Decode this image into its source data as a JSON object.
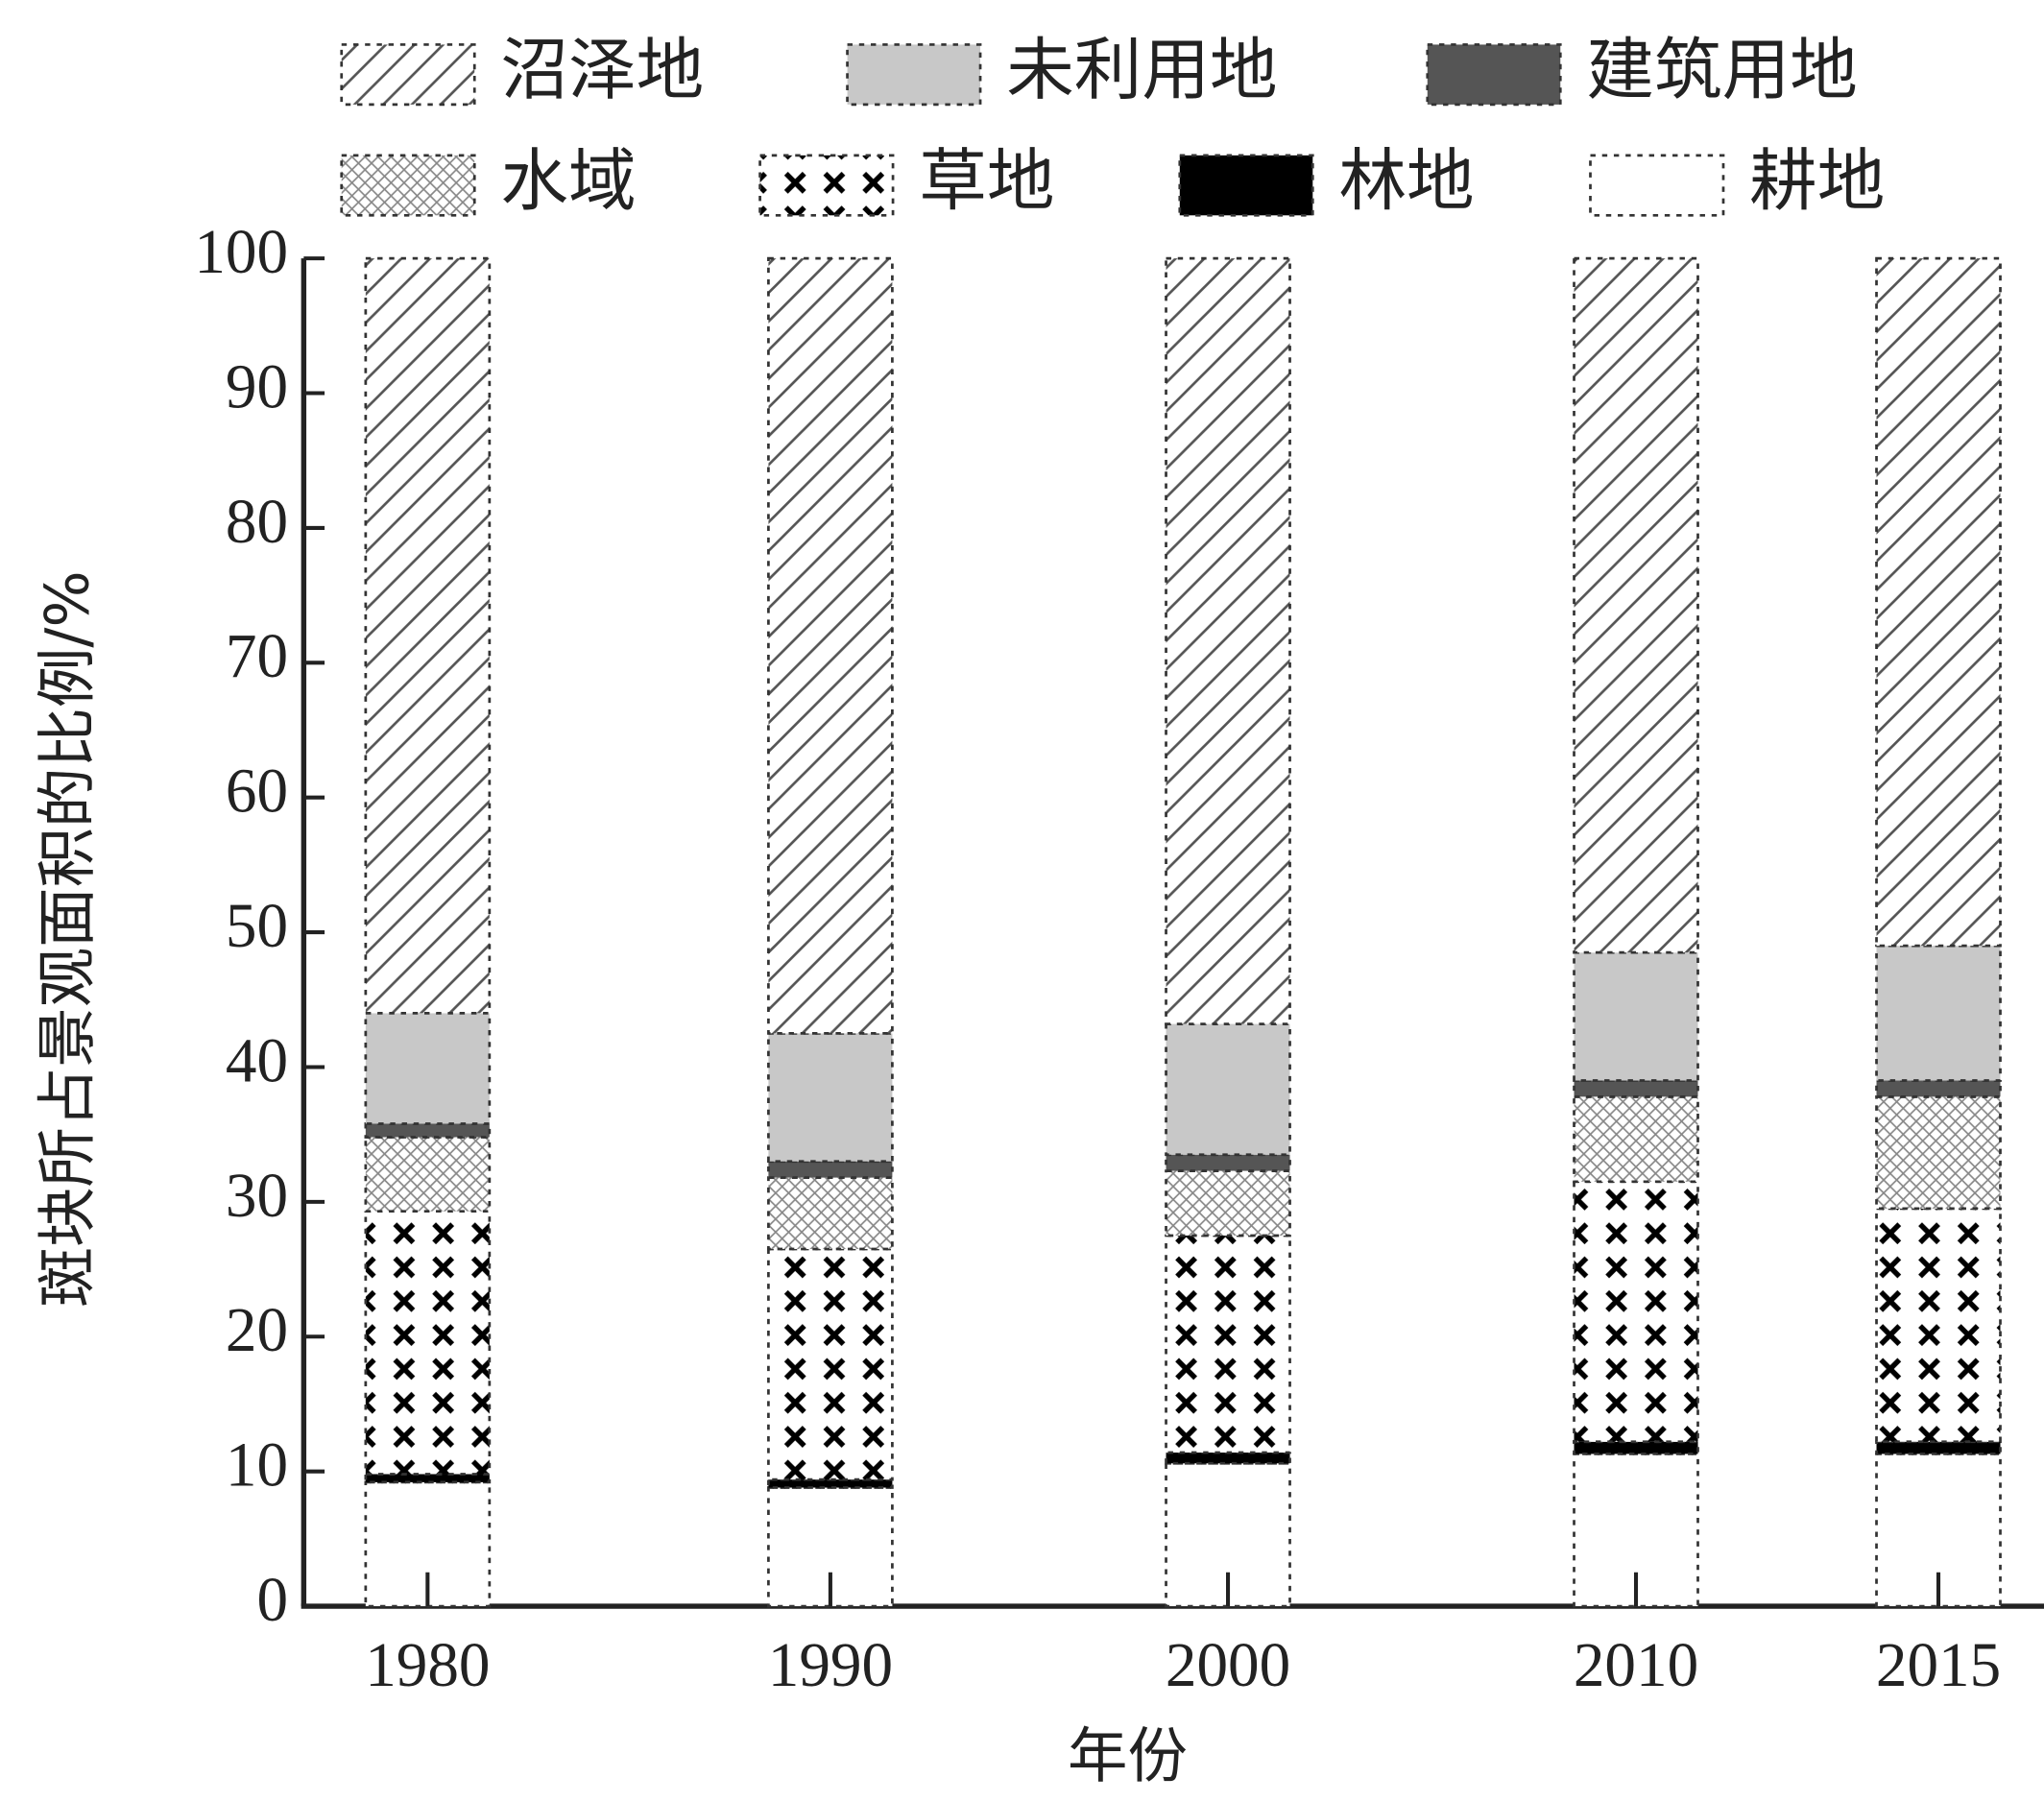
{
  "chart_data": {
    "type": "stacked_bar",
    "categories": [
      "1980",
      "1990",
      "2000",
      "2010",
      "2015"
    ],
    "x_label": "年份",
    "y_label": "斑块所占景观面积的比例/%",
    "ylim": [
      0,
      100
    ],
    "yticks": [
      0,
      10,
      20,
      30,
      40,
      50,
      60,
      70,
      80,
      90,
      100
    ],
    "series": [
      {
        "name": "耕地",
        "color": "#ffffff",
        "hatch": "dotted",
        "values": [
          9.2,
          8.8,
          10.6,
          11.3,
          11.3
        ]
      },
      {
        "name": "林地",
        "color": "#000000",
        "hatch": "solid",
        "values": [
          0.6,
          0.6,
          0.8,
          0.9,
          0.9
        ]
      },
      {
        "name": "草地",
        "color": "#000000",
        "hatch": "cross",
        "values": [
          19.5,
          17.1,
          16.1,
          19.3,
          17.3
        ]
      },
      {
        "name": "水域",
        "color": "#888888",
        "hatch": "crosshatch",
        "values": [
          5.5,
          5.3,
          4.8,
          6.3,
          8.3
        ]
      },
      {
        "name": "建筑用地",
        "color": "#555555",
        "hatch": "solid",
        "values": [
          1.0,
          1.2,
          1.2,
          1.2,
          1.2
        ]
      },
      {
        "name": "未利用地",
        "color": "#c8c8c8",
        "hatch": "solid",
        "values": [
          8.2,
          9.5,
          9.7,
          9.5,
          10.0
        ]
      },
      {
        "name": "沼泽地",
        "color": "#555555",
        "hatch": "diagonal",
        "values": [
          56.0,
          57.5,
          56.8,
          51.5,
          51.0
        ]
      }
    ]
  }
}
